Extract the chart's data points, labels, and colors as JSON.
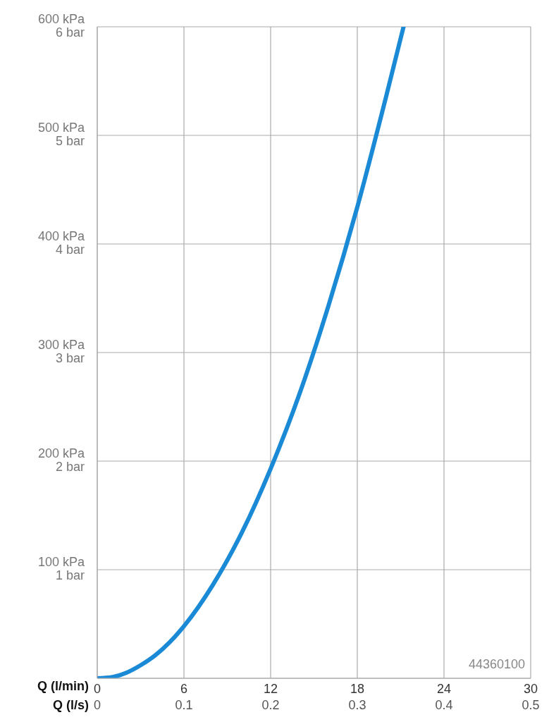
{
  "chart_data": {
    "type": "line",
    "xlabel": "Q (l/min)",
    "x2label": "Q (l/s)",
    "x": [
      0,
      1,
      2,
      3,
      4,
      5,
      6,
      8,
      10,
      12,
      14,
      16,
      18,
      20,
      21.2
    ],
    "series": [
      {
        "color": "#1b8ad6",
        "values": [
          0,
          1,
          5,
          12,
          21,
          33,
          48,
          86,
          134,
          193,
          262,
          343,
          434,
          536,
          600
        ]
      }
    ],
    "xlim": [
      0,
      30
    ],
    "xticks": [
      0,
      6,
      12,
      18,
      24,
      30
    ],
    "x2lim": [
      0,
      0.5
    ],
    "x2ticks": [
      0,
      0.1,
      0.2,
      0.3,
      0.4,
      0.5
    ],
    "ylim": [
      0,
      600
    ],
    "yticks": [
      {
        "value": 0,
        "label": null
      },
      {
        "value": 100,
        "label": "100 kPa"
      },
      {
        "value": 200,
        "label": "200 kPa"
      },
      {
        "value": 300,
        "label": "300 kPa"
      },
      {
        "value": 400,
        "label": "400 kPa"
      },
      {
        "value": 500,
        "label": "500 kPa"
      },
      {
        "value": 600,
        "label": "600 kPa"
      }
    ],
    "y2lim": [
      0,
      6
    ],
    "y2ticks": [
      {
        "value": 1,
        "label": "1 bar"
      },
      {
        "value": 2,
        "label": "2 bar"
      },
      {
        "value": 3,
        "label": "3 bar"
      },
      {
        "value": 4,
        "label": "4 bar"
      },
      {
        "value": 5,
        "label": "5 bar"
      },
      {
        "value": 6,
        "label": "6 bar"
      }
    ],
    "grid": true,
    "annotations": [
      "44360100"
    ]
  }
}
